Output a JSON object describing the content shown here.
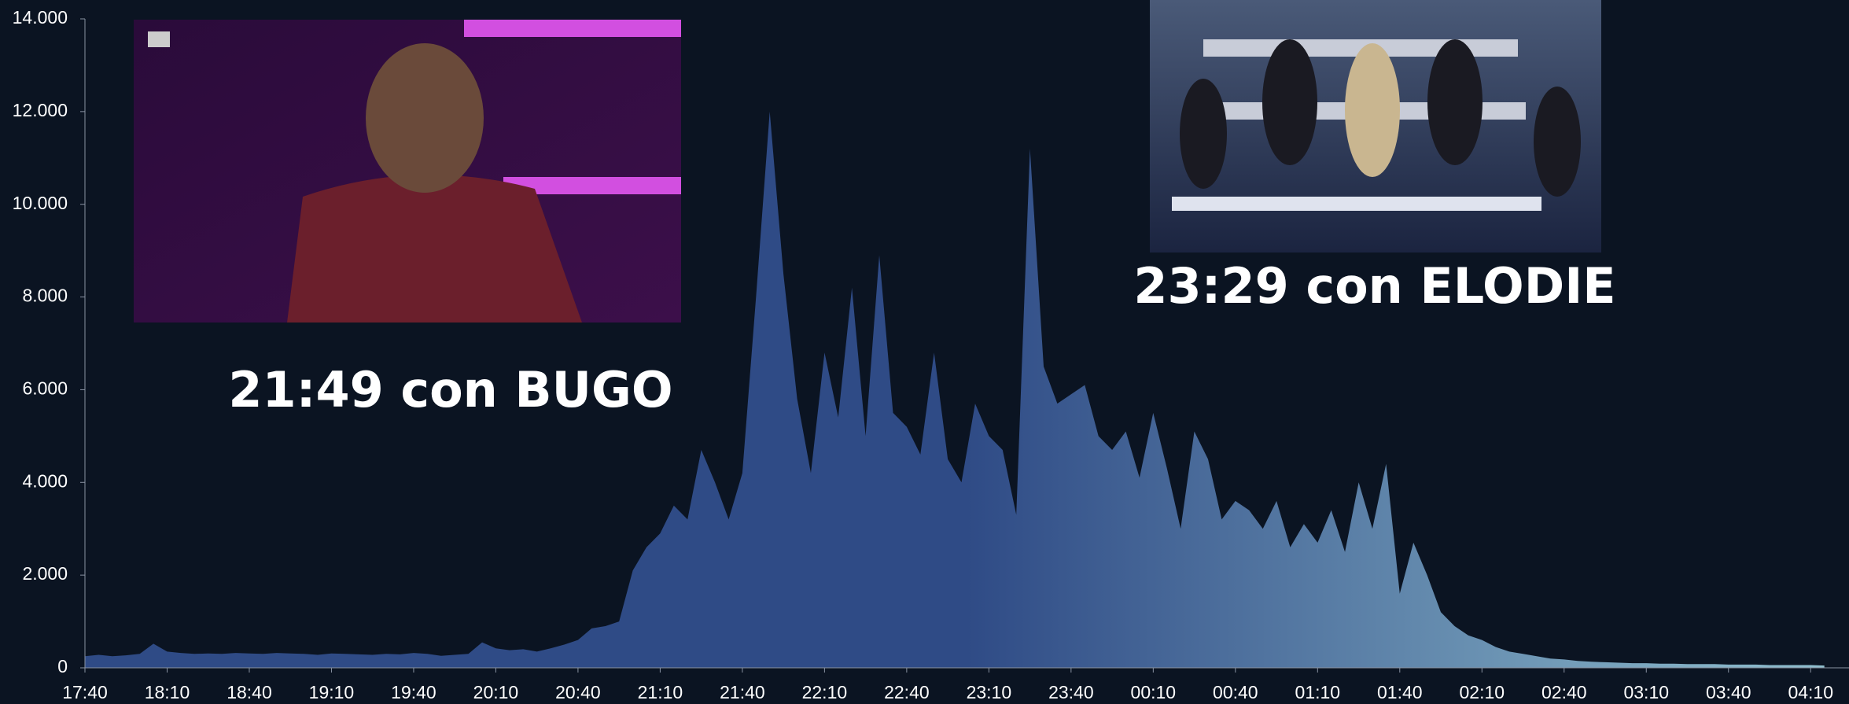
{
  "chart_data": {
    "type": "area",
    "annotations": [
      "21:49 con BUGO",
      "23:29 con ELODIE"
    ],
    "x": [
      0,
      5,
      10,
      15,
      20,
      25,
      30,
      35,
      40,
      45,
      50,
      55,
      60,
      65,
      70,
      75,
      80,
      85,
      90,
      95,
      100,
      105,
      110,
      115,
      120,
      125,
      130,
      135,
      140,
      145,
      150,
      155,
      160,
      165,
      170,
      175,
      180,
      185,
      190,
      195,
      200,
      205,
      210,
      215,
      220,
      225,
      230,
      235,
      240,
      245,
      250,
      255,
      260,
      265,
      270,
      275,
      280,
      285,
      290,
      295,
      300,
      305,
      310,
      315,
      320,
      325,
      330,
      335,
      340,
      345,
      350,
      355,
      360,
      365,
      370,
      375,
      380,
      385,
      390,
      395,
      400,
      405,
      410,
      415,
      420,
      425,
      430,
      435,
      440,
      445,
      450,
      455,
      460,
      465,
      470,
      475,
      480,
      485,
      490,
      495,
      500,
      505,
      510,
      515,
      520,
      525,
      530,
      535,
      540,
      545,
      550,
      555,
      560,
      565,
      570,
      575,
      580,
      585,
      590,
      595,
      600,
      605,
      610,
      615,
      620,
      625,
      630,
      635
    ],
    "values": [
      250,
      280,
      250,
      270,
      300,
      520,
      350,
      320,
      300,
      310,
      300,
      320,
      310,
      300,
      320,
      310,
      300,
      280,
      310,
      300,
      290,
      280,
      300,
      290,
      320,
      300,
      260,
      280,
      300,
      550,
      420,
      380,
      400,
      350,
      420,
      500,
      600,
      850,
      900,
      1000,
      2100,
      2600,
      2900,
      3500,
      3200,
      4700,
      4000,
      3200,
      4200,
      8000,
      12000,
      8500,
      5800,
      4200,
      6800,
      5400,
      8200,
      5000,
      8900,
      5500,
      5200,
      4600,
      6800,
      4500,
      4000,
      5700,
      5000,
      4700,
      3300,
      11200,
      6500,
      5700,
      5900,
      6100,
      5000,
      4700,
      5100,
      4100,
      5500,
      4300,
      3000,
      5100,
      4500,
      3200,
      3600,
      3400,
      3000,
      3600,
      2600,
      3100,
      2700,
      3400,
      2500,
      4000,
      3000,
      4400,
      1600,
      2700,
      2000,
      1200,
      900,
      700,
      600,
      450,
      350,
      300,
      250,
      200,
      180,
      150,
      130,
      120,
      110,
      100,
      100,
      90,
      90,
      80,
      80,
      80,
      70,
      70,
      70,
      60,
      60,
      60,
      60,
      50
    ],
    "color": "#2f4b86",
    "color_end": "#93c3d1",
    "xlim": [
      0,
      644
    ],
    "ylim": [
      0,
      14000
    ],
    "xticks": [
      {
        "value": 0,
        "label": "17:40"
      },
      {
        "value": 30,
        "label": "18:10"
      },
      {
        "value": 60,
        "label": "18:40"
      },
      {
        "value": 90,
        "label": "19:10"
      },
      {
        "value": 120,
        "label": "19:40"
      },
      {
        "value": 150,
        "label": "20:10"
      },
      {
        "value": 180,
        "label": "20:40"
      },
      {
        "value": 210,
        "label": "21:10"
      },
      {
        "value": 240,
        "label": "21:40"
      },
      {
        "value": 270,
        "label": "22:10"
      },
      {
        "value": 300,
        "label": "22:40"
      },
      {
        "value": 330,
        "label": "23:10"
      },
      {
        "value": 360,
        "label": "23:40"
      },
      {
        "value": 390,
        "label": "00:10"
      },
      {
        "value": 420,
        "label": "00:40"
      },
      {
        "value": 450,
        "label": "01:10"
      },
      {
        "value": 480,
        "label": "01:40"
      },
      {
        "value": 510,
        "label": "02:10"
      },
      {
        "value": 540,
        "label": "02:40"
      },
      {
        "value": 570,
        "label": "03:10"
      },
      {
        "value": 600,
        "label": "03:40"
      },
      {
        "value": 630,
        "label": "04:10"
      }
    ],
    "yticks": [
      0,
      {
        "value": 2000,
        "label": "2.000"
      },
      {
        "value": 4000,
        "label": "4.000"
      },
      {
        "value": 6000,
        "label": "6.000"
      },
      {
        "value": 8000,
        "label": "8.000"
      },
      {
        "value": 10000,
        "label": "10.000"
      },
      {
        "value": 12000,
        "label": "12.000"
      },
      {
        "value": 14000,
        "label": "14.000"
      }
    ]
  }
}
